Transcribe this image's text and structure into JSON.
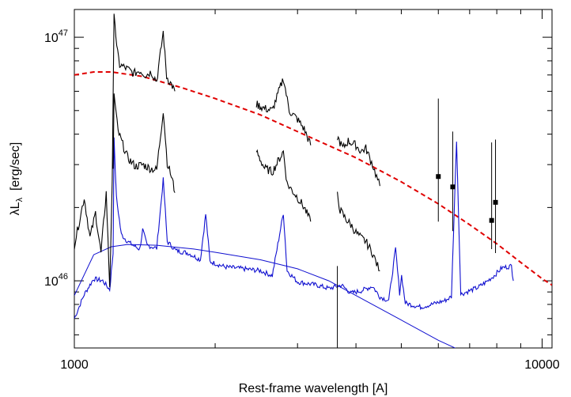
{
  "chart_data": {
    "type": "line",
    "title": "",
    "xlabel": "Rest-frame wavelength [A]",
    "ylabel": {
      "base": "λL",
      "sub": "λ",
      "unit": "  [erg/sec]"
    },
    "xscale": "log",
    "yscale": "log",
    "xlim": [
      1000,
      10500
    ],
    "ylim": [
      5.3e+45,
      1.3e+47
    ],
    "x_ticks": [
      {
        "value": 1000,
        "label": "1000"
      },
      {
        "value": 10000,
        "label": "10000"
      }
    ],
    "y_ticks": [
      {
        "value": 1e+46,
        "base": "10",
        "exp": "46"
      },
      {
        "value": 1e+47,
        "base": "10",
        "exp": "47"
      }
    ],
    "grid": false,
    "legend": "none",
    "colors": {
      "observed": "#000000",
      "composite": "#1010d0",
      "model": "#e00000"
    },
    "series": [
      {
        "style": "dashed",
        "color": "#e00000",
        "points": [
          [
            1000,
            7e+46
          ],
          [
            1100,
            7.2e+46
          ],
          [
            1200,
            7.2e+46
          ],
          [
            1400,
            6.9e+46
          ],
          [
            1700,
            6.2e+46
          ],
          [
            2000,
            5.6e+46
          ],
          [
            2500,
            4.8e+46
          ],
          [
            3000,
            4.1e+46
          ],
          [
            4000,
            3.2e+46
          ],
          [
            5000,
            2.55e+46
          ],
          [
            6000,
            2.07e+46
          ],
          [
            7000,
            1.7e+46
          ],
          [
            8000,
            1.42e+46
          ],
          [
            9000,
            1.19e+46
          ],
          [
            10000,
            1.02e+46
          ],
          [
            10500,
            9.6e+45
          ]
        ]
      },
      {
        "style": "solid-thin",
        "color": "#1010d0",
        "points": [
          [
            1000,
            8.7e+45
          ],
          [
            1100,
            1.28e+46
          ],
          [
            1200,
            1.38e+46
          ],
          [
            1300,
            1.41e+46
          ],
          [
            1500,
            1.4e+46
          ],
          [
            1800,
            1.35e+46
          ],
          [
            2000,
            1.31e+46
          ],
          [
            2500,
            1.22e+46
          ],
          [
            3000,
            1.12e+46
          ],
          [
            3500,
            1e+46
          ],
          [
            4000,
            8.7e+45
          ],
          [
            5000,
            6.9e+45
          ],
          [
            6000,
            5.7e+45
          ],
          [
            6800,
            5.1e+45
          ]
        ]
      },
      {
        "style": "noisy",
        "color": "#1010d0",
        "points": [
          [
            1000,
            7e+45
          ],
          [
            1050,
            8.8e+45
          ],
          [
            1100,
            1.02e+46
          ],
          [
            1150,
            1e+46
          ],
          [
            1190,
            9.2e+45
          ],
          [
            1210,
            1.3e+46
          ],
          [
            1216,
            3.8e+46
          ],
          [
            1230,
            2.2e+46
          ],
          [
            1260,
            1.55e+46
          ],
          [
            1300,
            1.45e+46
          ],
          [
            1350,
            1.38e+46
          ],
          [
            1380,
            1.35e+46
          ],
          [
            1400,
            1.62e+46
          ],
          [
            1430,
            1.4e+46
          ],
          [
            1500,
            1.36e+46
          ],
          [
            1549,
            2.6e+46
          ],
          [
            1580,
            1.45e+46
          ],
          [
            1650,
            1.33e+46
          ],
          [
            1750,
            1.3e+46
          ],
          [
            1860,
            1.22e+46
          ],
          [
            1909,
            1.88e+46
          ],
          [
            1950,
            1.2e+46
          ],
          [
            2100,
            1.14e+46
          ],
          [
            2300,
            1.12e+46
          ],
          [
            2500,
            1.1e+46
          ],
          [
            2650,
            1.05e+46
          ],
          [
            2798,
            1.9e+46
          ],
          [
            2850,
            1.1e+46
          ],
          [
            3000,
            9.9e+45
          ],
          [
            3300,
            9.6e+45
          ],
          [
            3500,
            9.3e+45
          ],
          [
            3727,
            9.6e+45
          ],
          [
            3900,
            8.9e+45
          ],
          [
            4102,
            9.1e+45
          ],
          [
            4340,
            9.5e+45
          ],
          [
            4500,
            8.6e+45
          ],
          [
            4700,
            8.3e+45
          ],
          [
            4861,
            1.35e+46
          ],
          [
            4959,
            8.9e+45
          ],
          [
            5007,
            1.05e+46
          ],
          [
            5100,
            8.1e+45
          ],
          [
            5500,
            7.8e+45
          ],
          [
            5800,
            8e+45
          ],
          [
            6200,
            8.3e+45
          ],
          [
            6400,
            8.6e+45
          ],
          [
            6563,
            3.8e+46
          ],
          [
            6700,
            8.8e+45
          ],
          [
            7000,
            9.1e+45
          ],
          [
            7300,
            9.4e+45
          ],
          [
            7600,
            9.9e+45
          ],
          [
            7900,
            1.05e+46
          ],
          [
            8200,
            1.13e+46
          ],
          [
            8600,
            1.15e+46
          ],
          [
            8680,
            1e+46
          ]
        ]
      },
      {
        "style": "noisy",
        "color": "#000000",
        "points": [
          [
            1000,
            1.4e+46
          ],
          [
            1050,
            2.2e+46
          ],
          [
            1080,
            1.5e+46
          ],
          [
            1110,
            1.9e+46
          ],
          [
            1140,
            1.3e+46
          ],
          [
            1170,
            2.3e+46
          ],
          [
            1190,
            9.5e+45
          ],
          [
            1205,
            2.5e+46
          ],
          [
            1216,
            1.3e+47
          ],
          [
            1232,
            9e+46
          ],
          [
            1250,
            7.7e+46
          ],
          [
            1300,
            7.4e+46
          ],
          [
            1340,
            7.1e+46
          ],
          [
            1380,
            7.3e+46
          ],
          [
            1420,
            7e+46
          ],
          [
            1460,
            7.2e+46
          ],
          [
            1500,
            6.6e+46
          ],
          [
            1549,
            1.05e+47
          ],
          [
            1575,
            6.9e+46
          ],
          [
            1620,
            6.3e+46
          ],
          [
            1640,
            6e+46
          ]
        ]
      },
      {
        "style": "noisy",
        "color": "#000000",
        "points": [
          [
            1210,
            2.8e+46
          ],
          [
            1216,
            5.8e+46
          ],
          [
            1240,
            4.1e+46
          ],
          [
            1300,
            3.2e+46
          ],
          [
            1350,
            2.95e+46
          ],
          [
            1400,
            3e+46
          ],
          [
            1450,
            2.9e+46
          ],
          [
            1500,
            2.85e+46
          ],
          [
            1549,
            5e+46
          ],
          [
            1580,
            3.05e+46
          ],
          [
            1620,
            2.6e+46
          ],
          [
            1640,
            2.3e+46
          ]
        ]
      },
      {
        "style": "noisy",
        "color": "#000000",
        "points": [
          [
            2450,
            5.3e+46
          ],
          [
            2550,
            5.1e+46
          ],
          [
            2650,
            5e+46
          ],
          [
            2798,
            6.8e+46
          ],
          [
            2880,
            5e+46
          ],
          [
            3000,
            4.6e+46
          ],
          [
            3100,
            4.2e+46
          ],
          [
            3200,
            3.6e+46
          ]
        ]
      },
      {
        "style": "noisy",
        "color": "#000000",
        "points": [
          [
            2450,
            3.4e+46
          ],
          [
            2550,
            2.9e+46
          ],
          [
            2650,
            2.8e+46
          ],
          [
            2798,
            3.4e+46
          ],
          [
            2850,
            2.5e+46
          ],
          [
            3000,
            2.2e+46
          ],
          [
            3100,
            2e+46
          ],
          [
            3200,
            1.75e+46
          ]
        ]
      },
      {
        "style": "noisy",
        "color": "#000000",
        "points": [
          [
            3650,
            3.9e+46
          ],
          [
            3750,
            3.5e+46
          ],
          [
            3850,
            3.75e+46
          ],
          [
            4000,
            3.6e+46
          ],
          [
            4100,
            3.4e+46
          ],
          [
            4200,
            3.5e+46
          ],
          [
            4340,
            3e+46
          ],
          [
            4450,
            2.6e+46
          ],
          [
            4500,
            2.45e+46
          ]
        ]
      },
      {
        "style": "noisy",
        "color": "#000000",
        "points": [
          [
            3650,
            2.25e+46
          ],
          [
            3700,
            1.95e+46
          ],
          [
            3800,
            1.8e+46
          ],
          [
            3900,
            1.7e+46
          ],
          [
            4000,
            1.58e+46
          ],
          [
            4100,
            1.5e+46
          ],
          [
            4200,
            1.45e+46
          ],
          [
            4340,
            1.3e+46
          ],
          [
            4450,
            1.15e+46
          ],
          [
            4500,
            1.1e+46
          ]
        ]
      },
      {
        "style": "points",
        "color": "#000000",
        "points": [
          {
            "x": 6000,
            "y": 2.68e+46,
            "lo": 1.75e+46,
            "hi": 5.6e+46
          },
          {
            "x": 6440,
            "y": 2.43e+46,
            "lo": 1.6e+46,
            "hi": 4.1e+46
          },
          {
            "x": 7800,
            "y": 1.77e+46,
            "lo": 1.35e+46,
            "hi": 3.7e+46
          },
          {
            "x": 7950,
            "y": 2.1e+46,
            "lo": 1.3e+46,
            "hi": 3.8e+46
          }
        ]
      }
    ]
  }
}
